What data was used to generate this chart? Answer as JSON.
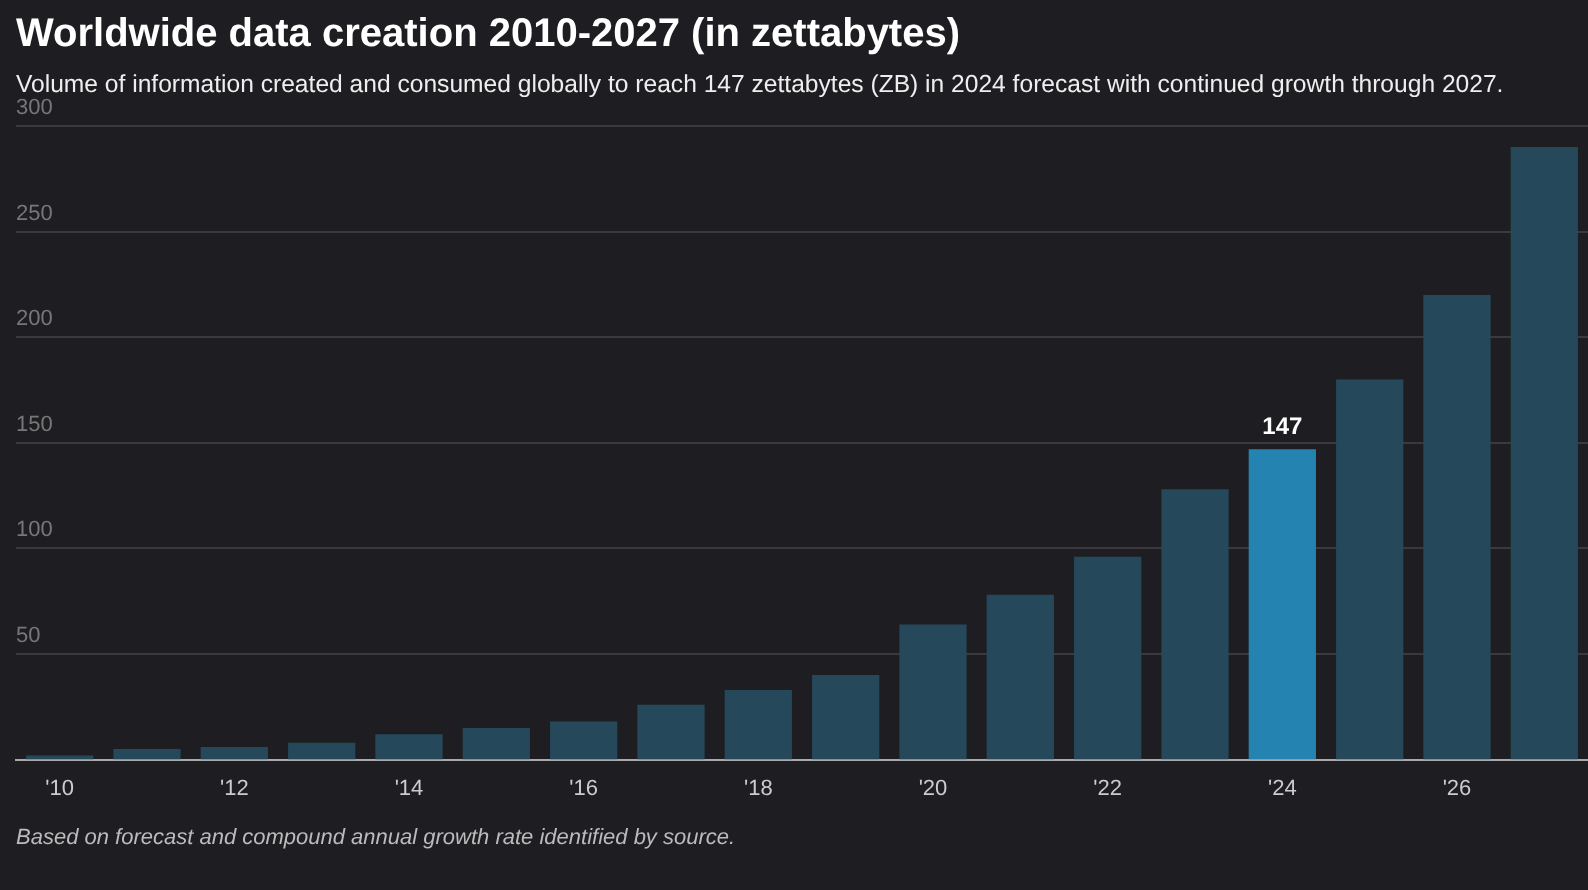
{
  "chart_data": {
    "type": "bar",
    "title": "Worldwide data creation 2010-2027 (in zettabytes)",
    "subtitle": "Volume of information created and consumed globally to reach 147 zettabytes (ZB) in 2024 forecast with continued growth through 2027.",
    "categories": [
      "'10",
      null,
      "'12",
      null,
      "'14",
      null,
      "'16",
      null,
      "'18",
      null,
      "'20",
      null,
      "'22",
      null,
      "'24",
      null,
      "'26",
      null
    ],
    "values": [
      2,
      5,
      6,
      8,
      12,
      15,
      18,
      26,
      33,
      40,
      64,
      78,
      96,
      128,
      147,
      180,
      220,
      290
    ],
    "colors": [
      "#25485a",
      "#25485a",
      "#25485a",
      "#25485a",
      "#25485a",
      "#25485a",
      "#25485a",
      "#25485a",
      "#25485a",
      "#25485a",
      "#25485a",
      "#25485a",
      "#25485a",
      "#25485a",
      "#2483b0",
      "#25485a",
      "#25485a",
      "#25485a"
    ],
    "value_labels": [
      null,
      null,
      null,
      null,
      null,
      null,
      null,
      null,
      null,
      null,
      null,
      null,
      null,
      null,
      "147",
      null,
      null,
      null
    ],
    "ylim": [
      0,
      300
    ],
    "yticks": [
      50,
      100,
      150,
      200,
      250,
      300
    ],
    "grid": "y",
    "legend": false,
    "annotations": [
      "Based on forecast and compound annual growth rate identified by source."
    ]
  }
}
